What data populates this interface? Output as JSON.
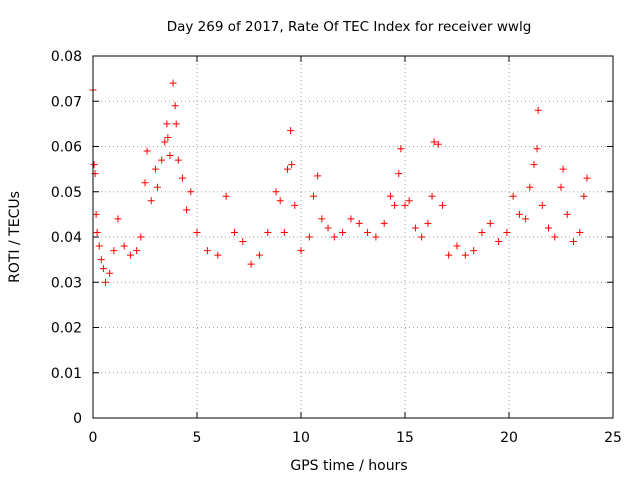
{
  "chart_data": {
    "type": "scatter",
    "title": "Day 269 of 2017, Rate Of TEC Index for receiver wwlg",
    "xlabel": "GPS time / hours",
    "ylabel": "ROTI / TECUs",
    "xlim": [
      0,
      25
    ],
    "ylim": [
      0,
      0.08
    ],
    "xticks": [
      0,
      5,
      10,
      15,
      20,
      25
    ],
    "yticks": [
      0,
      0.01,
      0.02,
      0.03,
      0.04,
      0.05,
      0.06,
      0.07,
      0.08
    ],
    "xtick_labels": [
      "0",
      "5",
      "10",
      "15",
      "20",
      "25"
    ],
    "ytick_labels": [
      "0",
      "0.01",
      "0.02",
      "0.03",
      "0.04",
      "0.05",
      "0.06",
      "0.07",
      "0.08"
    ],
    "grid": true,
    "marker": "+",
    "color": "#ff0000",
    "series": [
      {
        "name": "ROTI",
        "points": [
          [
            0.0,
            0.0725
          ],
          [
            0.05,
            0.056
          ],
          [
            0.1,
            0.054
          ],
          [
            0.15,
            0.045
          ],
          [
            0.2,
            0.041
          ],
          [
            0.3,
            0.038
          ],
          [
            0.4,
            0.035
          ],
          [
            0.5,
            0.033
          ],
          [
            0.6,
            0.03
          ],
          [
            0.8,
            0.032
          ],
          [
            1.0,
            0.037
          ],
          [
            1.2,
            0.044
          ],
          [
            1.5,
            0.038
          ],
          [
            1.8,
            0.036
          ],
          [
            2.1,
            0.037
          ],
          [
            2.3,
            0.04
          ],
          [
            2.5,
            0.052
          ],
          [
            2.6,
            0.059
          ],
          [
            2.8,
            0.048
          ],
          [
            3.0,
            0.055
          ],
          [
            3.1,
            0.051
          ],
          [
            3.3,
            0.057
          ],
          [
            3.45,
            0.061
          ],
          [
            3.55,
            0.065
          ],
          [
            3.6,
            0.062
          ],
          [
            3.7,
            0.058
          ],
          [
            3.85,
            0.074
          ],
          [
            3.95,
            0.069
          ],
          [
            4.0,
            0.065
          ],
          [
            4.1,
            0.057
          ],
          [
            4.3,
            0.053
          ],
          [
            4.5,
            0.046
          ],
          [
            4.7,
            0.05
          ],
          [
            5.0,
            0.041
          ],
          [
            5.5,
            0.037
          ],
          [
            6.0,
            0.036
          ],
          [
            6.4,
            0.049
          ],
          [
            6.8,
            0.041
          ],
          [
            7.2,
            0.039
          ],
          [
            7.6,
            0.034
          ],
          [
            8.0,
            0.036
          ],
          [
            8.4,
            0.041
          ],
          [
            8.8,
            0.05
          ],
          [
            9.0,
            0.048
          ],
          [
            9.2,
            0.041
          ],
          [
            9.35,
            0.055
          ],
          [
            9.5,
            0.0635
          ],
          [
            9.55,
            0.056
          ],
          [
            9.7,
            0.047
          ],
          [
            10.0,
            0.037
          ],
          [
            10.4,
            0.04
          ],
          [
            10.6,
            0.049
          ],
          [
            10.8,
            0.0535
          ],
          [
            11.0,
            0.044
          ],
          [
            11.3,
            0.042
          ],
          [
            11.6,
            0.04
          ],
          [
            12.0,
            0.041
          ],
          [
            12.4,
            0.044
          ],
          [
            12.8,
            0.043
          ],
          [
            13.2,
            0.041
          ],
          [
            13.6,
            0.04
          ],
          [
            14.0,
            0.043
          ],
          [
            14.3,
            0.049
          ],
          [
            14.5,
            0.047
          ],
          [
            14.7,
            0.054
          ],
          [
            14.8,
            0.0595
          ],
          [
            15.0,
            0.047
          ],
          [
            15.2,
            0.048
          ],
          [
            15.5,
            0.042
          ],
          [
            15.8,
            0.04
          ],
          [
            16.1,
            0.043
          ],
          [
            16.3,
            0.049
          ],
          [
            16.4,
            0.061
          ],
          [
            16.6,
            0.0605
          ],
          [
            16.8,
            0.047
          ],
          [
            17.1,
            0.036
          ],
          [
            17.5,
            0.038
          ],
          [
            17.9,
            0.036
          ],
          [
            18.3,
            0.037
          ],
          [
            18.7,
            0.041
          ],
          [
            19.1,
            0.043
          ],
          [
            19.5,
            0.039
          ],
          [
            19.9,
            0.041
          ],
          [
            20.2,
            0.049
          ],
          [
            20.5,
            0.045
          ],
          [
            20.8,
            0.044
          ],
          [
            21.0,
            0.051
          ],
          [
            21.2,
            0.056
          ],
          [
            21.35,
            0.0595
          ],
          [
            21.4,
            0.068
          ],
          [
            21.6,
            0.047
          ],
          [
            21.9,
            0.042
          ],
          [
            22.2,
            0.04
          ],
          [
            22.5,
            0.051
          ],
          [
            22.6,
            0.055
          ],
          [
            22.8,
            0.045
          ],
          [
            23.1,
            0.039
          ],
          [
            23.4,
            0.041
          ],
          [
            23.6,
            0.049
          ],
          [
            23.75,
            0.053
          ]
        ]
      }
    ]
  }
}
